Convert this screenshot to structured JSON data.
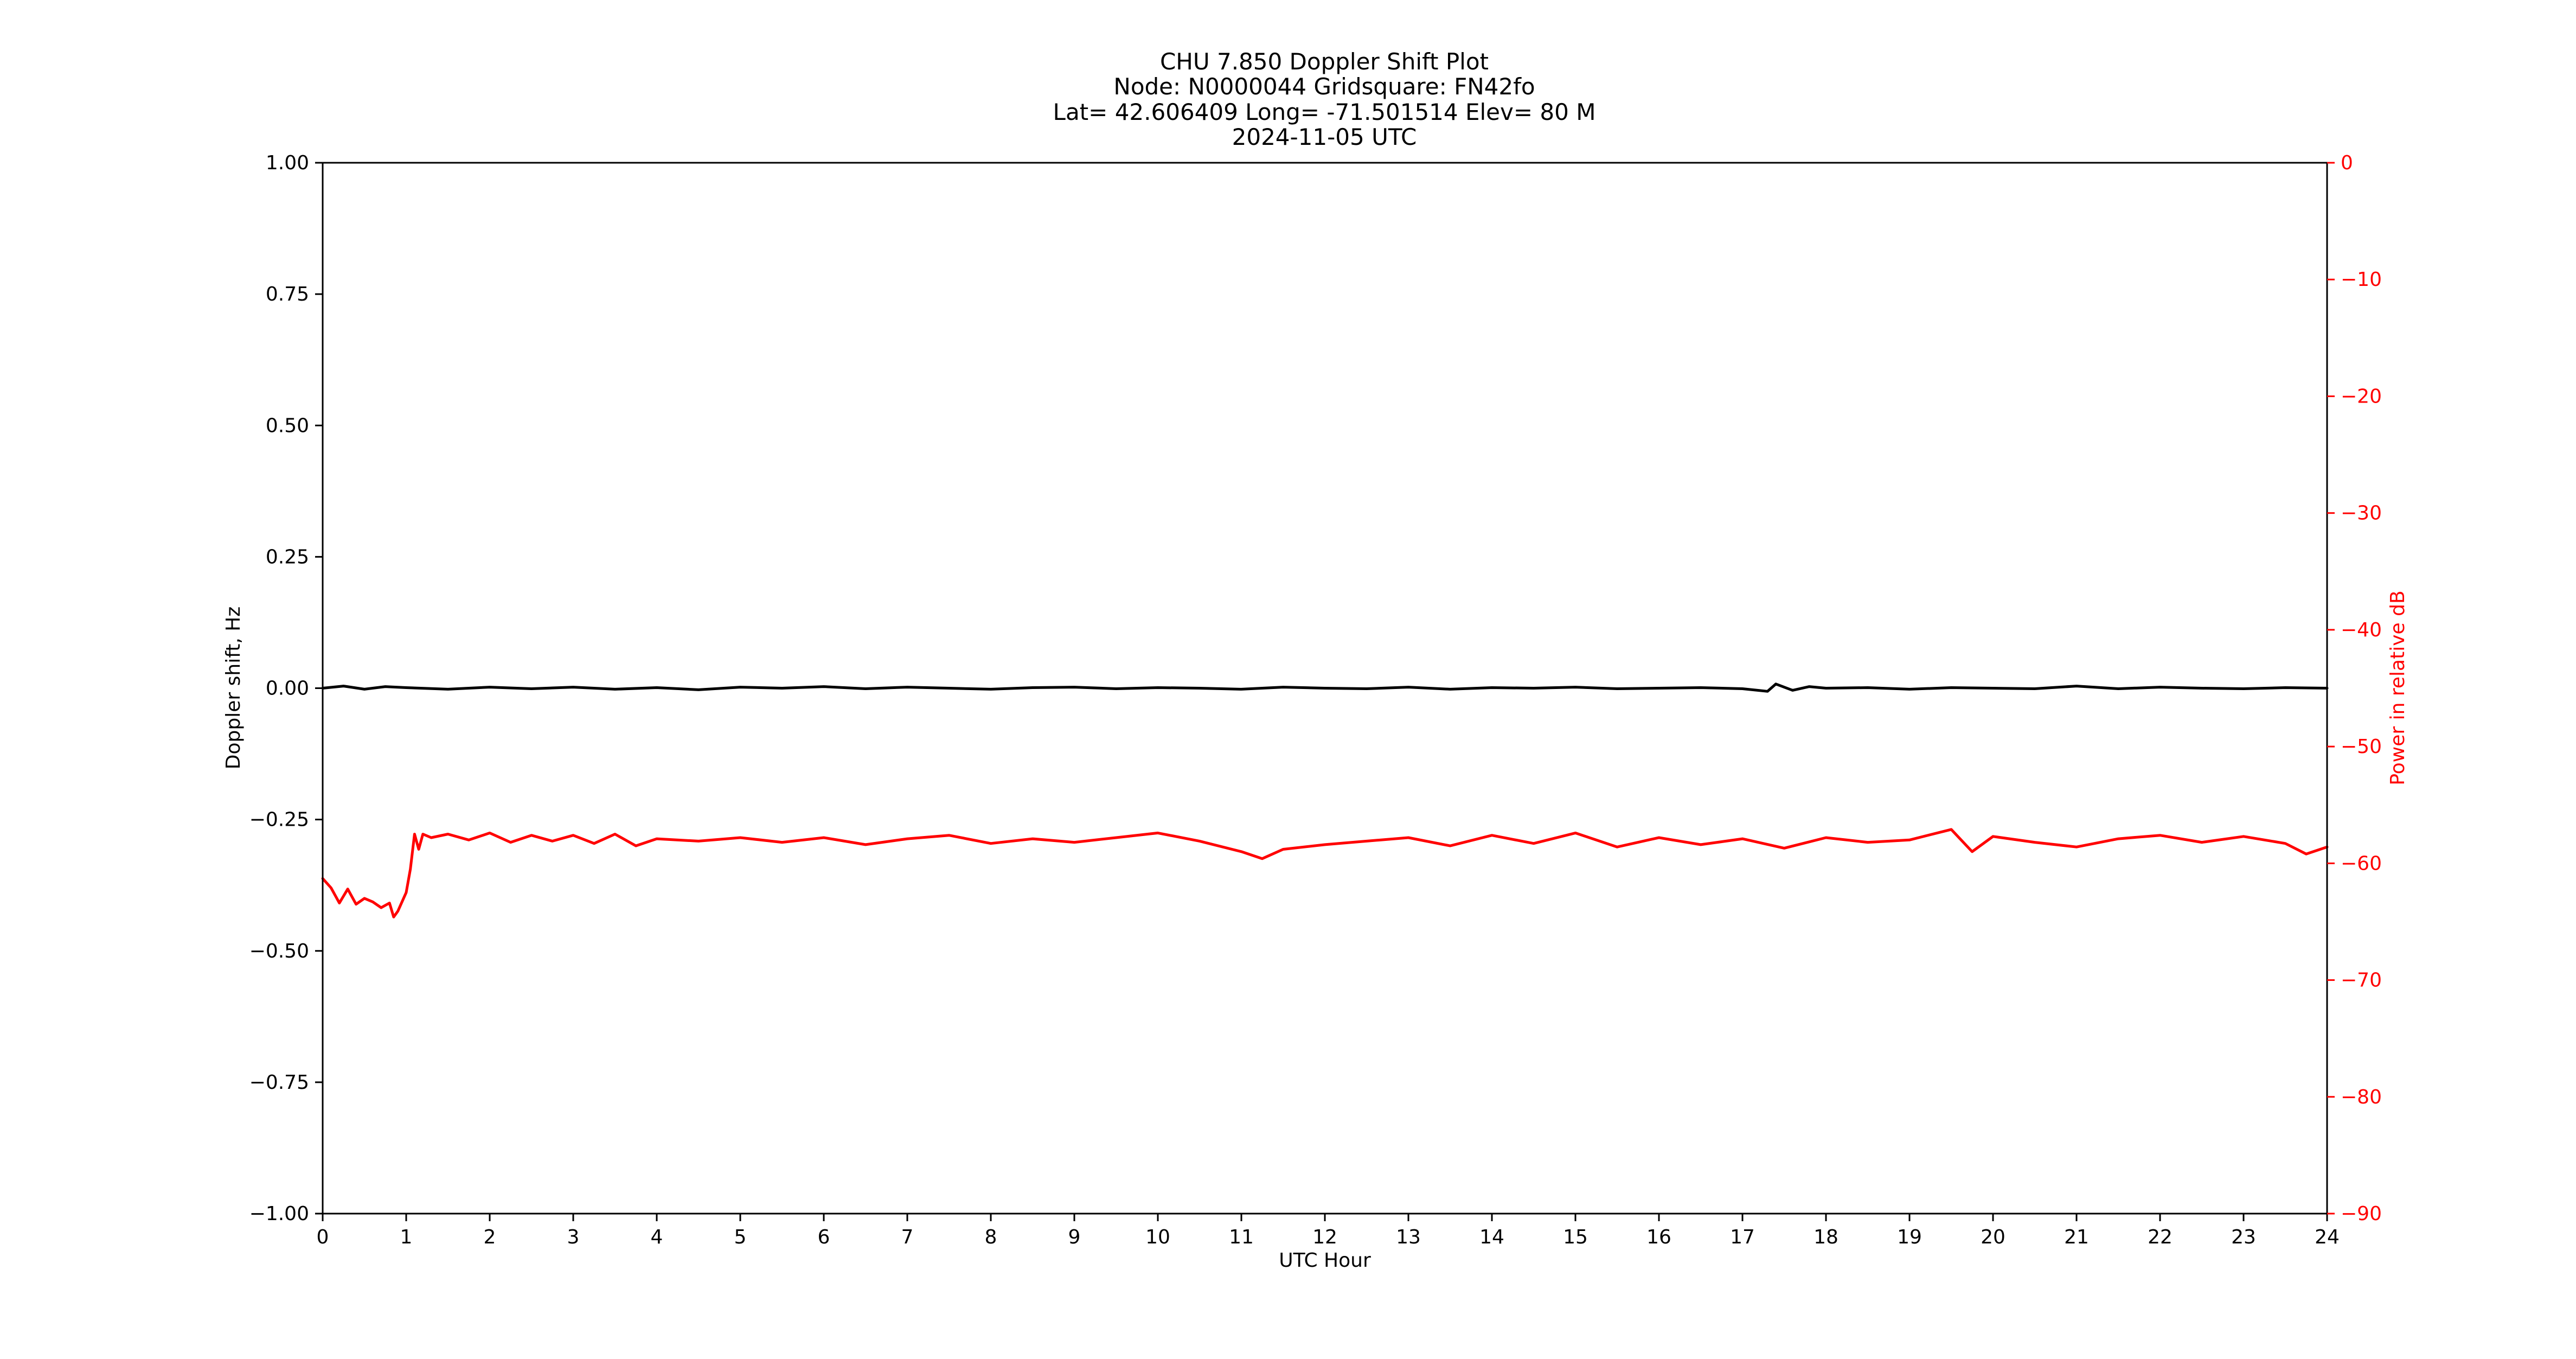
{
  "title_lines": [
    "CHU 7.850 Doppler Shift Plot",
    "Node:  N0000044     Gridsquare:  FN42fo",
    "Lat=   42.606409    Long= -71.501514    Elev= 80 M",
    "2024-11-05  UTC"
  ],
  "colors": {
    "doppler": "#000000",
    "power": "#ff0000",
    "left_axis": "#000000",
    "right_axis": "#ff0000"
  },
  "chart_data": {
    "type": "line",
    "title": "CHU 7.850 Doppler Shift Plot",
    "subtitle": [
      "Node:  N0000044     Gridsquare:  FN42fo",
      "Lat=   42.606409    Long= -71.501514    Elev= 80 M",
      "2024-11-05  UTC"
    ],
    "xlabel": "UTC Hour",
    "ylabel": "Doppler shift, Hz",
    "y2label": "Power in relative dB",
    "xlim": [
      0,
      24
    ],
    "ylim": [
      -1.0,
      1.0
    ],
    "y2lim": [
      -90,
      0
    ],
    "grid": false,
    "x_ticks": [
      "0",
      "1",
      "2",
      "3",
      "4",
      "5",
      "6",
      "7",
      "8",
      "9",
      "10",
      "11",
      "12",
      "13",
      "14",
      "15",
      "16",
      "17",
      "18",
      "19",
      "20",
      "21",
      "22",
      "23",
      "24"
    ],
    "y_ticks": [
      "1.00",
      "0.75",
      "0.50",
      "0.25",
      "0.00",
      "−0.25",
      "−0.50",
      "−0.75",
      "−1.00"
    ],
    "y2_ticks": [
      "0",
      "−10",
      "−20",
      "−30",
      "−40",
      "−50",
      "−60",
      "−70",
      "−80",
      "−90"
    ],
    "series": [
      {
        "axis": "left",
        "color": "#000000",
        "x": [
          0,
          0.25,
          0.5,
          0.75,
          1,
          1.5,
          2,
          2.5,
          3,
          3.5,
          4,
          4.5,
          5,
          5.5,
          6,
          6.5,
          7,
          7.5,
          8,
          8.5,
          9,
          9.5,
          10,
          10.5,
          11,
          11.5,
          12,
          12.5,
          13,
          13.5,
          14,
          14.5,
          15,
          15.5,
          16,
          16.5,
          17,
          17.3,
          17.4,
          17.6,
          17.8,
          18,
          18.5,
          19,
          19.5,
          20,
          20.5,
          21,
          21.5,
          22,
          22.5,
          23,
          23.5,
          24
        ],
        "y": [
          0.0,
          0.004,
          -0.002,
          0.003,
          0.001,
          -0.002,
          0.002,
          -0.001,
          0.002,
          -0.002,
          0.001,
          -0.003,
          0.002,
          0.0,
          0.003,
          -0.001,
          0.002,
          0.0,
          -0.002,
          0.001,
          0.002,
          -0.001,
          0.001,
          0.0,
          -0.002,
          0.002,
          0.0,
          -0.001,
          0.002,
          -0.002,
          0.001,
          0.0,
          0.002,
          -0.001,
          0.0,
          0.001,
          -0.001,
          -0.006,
          0.008,
          -0.004,
          0.003,
          0.0,
          0.001,
          -0.002,
          0.001,
          0.0,
          -0.001,
          0.004,
          -0.001,
          0.002,
          0.0,
          -0.001,
          0.001,
          0.0
        ]
      },
      {
        "axis": "right",
        "color": "#ff0000",
        "x": [
          0,
          0.1,
          0.2,
          0.3,
          0.4,
          0.5,
          0.6,
          0.7,
          0.8,
          0.85,
          0.9,
          1.0,
          1.05,
          1.1,
          1.15,
          1.2,
          1.3,
          1.5,
          1.75,
          2,
          2.25,
          2.5,
          2.75,
          3,
          3.25,
          3.5,
          3.75,
          4,
          4.5,
          5,
          5.5,
          6,
          6.5,
          7,
          7.5,
          8,
          8.5,
          9,
          9.5,
          10,
          10.5,
          11,
          11.25,
          11.5,
          12,
          12.5,
          13,
          13.5,
          14,
          14.5,
          15,
          15.5,
          16,
          16.5,
          17,
          17.5,
          18,
          18.5,
          19,
          19.5,
          19.75,
          20,
          20.5,
          21,
          21.5,
          22,
          22.5,
          23,
          23.5,
          23.75,
          24
        ],
        "y": [
          -61.3,
          -62.1,
          -63.4,
          -62.2,
          -63.5,
          -63.0,
          -63.3,
          -63.8,
          -63.4,
          -64.6,
          -64.1,
          -62.5,
          -60.5,
          -57.5,
          -58.8,
          -57.5,
          -57.8,
          -57.5,
          -58.0,
          -57.4,
          -58.2,
          -57.6,
          -58.1,
          -57.6,
          -58.3,
          -57.5,
          -58.5,
          -57.9,
          -58.1,
          -57.8,
          -58.2,
          -57.8,
          -58.4,
          -57.9,
          -57.6,
          -58.3,
          -57.9,
          -58.2,
          -57.8,
          -57.4,
          -58.1,
          -59.0,
          -59.6,
          -58.8,
          -58.4,
          -58.1,
          -57.8,
          -58.5,
          -57.6,
          -58.3,
          -57.4,
          -58.6,
          -57.8,
          -58.4,
          -57.9,
          -58.7,
          -57.8,
          -58.2,
          -58.0,
          -57.1,
          -59.0,
          -57.7,
          -58.2,
          -58.6,
          -57.9,
          -57.6,
          -58.2,
          -57.7,
          -58.3,
          -59.2,
          -58.6
        ]
      }
    ]
  }
}
